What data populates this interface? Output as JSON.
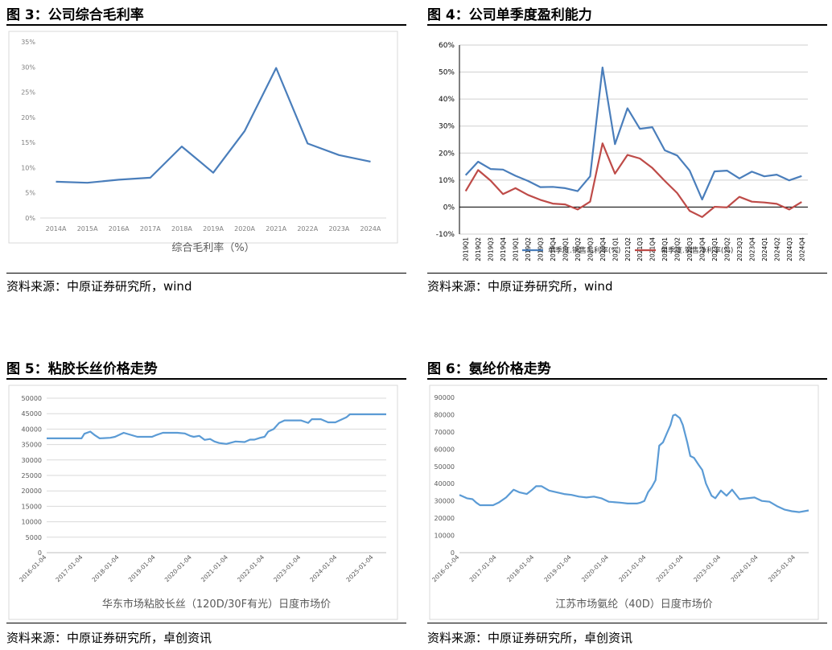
{
  "charts": [
    {
      "heading": "图 3：公司综合毛利率",
      "source": "资料来源：中原证券研究所，wind",
      "chart_data": {
        "type": "line",
        "title": "",
        "xlabel": "综合毛利率（%）",
        "ylabel": "",
        "ylim": [
          0,
          35
        ],
        "yticks": [
          "0%",
          "5%",
          "10%",
          "15%",
          "20%",
          "25%",
          "30%",
          "35%"
        ],
        "categories": [
          "2014A",
          "2015A",
          "2016A",
          "2017A",
          "2018A",
          "2019A",
          "2020A",
          "2021A",
          "2022A",
          "2023A",
          "2024A"
        ],
        "series": [
          {
            "name": "",
            "color": "#4a7ebb",
            "values": [
              7.2,
              7.0,
              7.6,
              8.0,
              14.2,
              9.0,
              17.3,
              29.8,
              14.8,
              12.5,
              11.2
            ]
          }
        ],
        "grid": false
      }
    },
    {
      "heading": "图 4：公司单季度盈利能力",
      "source": "资料来源：中原证券研究所，wind",
      "chart_data": {
        "type": "line",
        "title": "",
        "xlabel": "",
        "ylabel": "",
        "ylim": [
          -10,
          60
        ],
        "yticks": [
          "-10%",
          "0%",
          "10%",
          "20%",
          "30%",
          "40%",
          "50%",
          "60%"
        ],
        "categories": [
          "2019Q1",
          "2019Q2",
          "2019Q3",
          "2019Q4",
          "2019Q1",
          "2019Q2",
          "2019Q3",
          "2019Q4",
          "2020Q1",
          "2020Q2",
          "2020Q3",
          "2020Q4",
          "2021Q1",
          "2021Q2",
          "2021Q3",
          "2021Q4",
          "2022Q1",
          "2022Q2",
          "2022Q3",
          "2022Q4",
          "2023Q1",
          "2023Q2",
          "2023Q3",
          "2023Q4",
          "2024Q1",
          "2024Q2",
          "2024Q3",
          "2024Q4"
        ],
        "series": [
          {
            "name": "单季度.销售毛利率(%)",
            "color": "#4a7ebb",
            "values": [
              11.8,
              16.8,
              14.1,
              13.9,
              11.6,
              9.7,
              7.4,
              7.5,
              7.0,
              5.9,
              11.4,
              51.7,
              23.3,
              36.6,
              29.0,
              29.6,
              21.0,
              19.1,
              13.5,
              2.8,
              13.2,
              13.5,
              10.6,
              13.1,
              11.4,
              12.0,
              9.9,
              11.5
            ]
          },
          {
            "name": "单季度.销售净利率(%)",
            "color": "#be4b48",
            "values": [
              5.9,
              13.7,
              9.8,
              4.8,
              7.0,
              4.5,
              2.7,
              1.3,
              1.0,
              -0.9,
              2.0,
              23.6,
              12.4,
              19.3,
              18.0,
              14.5,
              9.7,
              5.2,
              -1.4,
              -3.7,
              0.1,
              -0.1,
              3.8,
              2.0,
              1.7,
              1.2,
              -0.9,
              1.9
            ]
          }
        ],
        "legend": "bottom",
        "grid": true
      }
    },
    {
      "heading": "图 5：粘胶长丝价格走势",
      "source": "资料来源：中原证券研究所，卓创资讯",
      "chart_data": {
        "type": "line",
        "title": "",
        "xlabel": "华东市场粘胶长丝（120D/30F有光）日度市场价",
        "ylabel": "",
        "ylim": [
          0,
          50000
        ],
        "yticks": [
          "0",
          "5000",
          "10000",
          "15000",
          "20000",
          "25000",
          "30000",
          "35000",
          "40000",
          "45000",
          "50000"
        ],
        "xticks": [
          "2016-01-04",
          "2017-01-04",
          "2018-01-04",
          "2019-01-04",
          "2020-01-04",
          "2021-01-04",
          "2022-01-04",
          "2023-01-04",
          "2024-01-04",
          "2025-01-04"
        ],
        "xrange": [
          2016.0,
          2025.35
        ],
        "series": [
          {
            "name": "",
            "color": "#5b9bd5",
            "x": [
              2016.0,
              2016.96,
              2017.04,
              2017.2,
              2017.33,
              2017.46,
              2017.75,
              2017.88,
              2018.12,
              2018.5,
              2018.9,
              2019.0,
              2019.2,
              2019.6,
              2019.8,
              2019.95,
              2020.05,
              2020.2,
              2020.35,
              2020.5,
              2020.62,
              2020.75,
              2020.95,
              2021.2,
              2021.45,
              2021.6,
              2021.72,
              2021.88,
              2022.0,
              2022.1,
              2022.25,
              2022.4,
              2022.55,
              2022.8,
              2023.0,
              2023.2,
              2023.3,
              2023.55,
              2023.75,
              2023.95,
              2024.1,
              2024.25,
              2024.35,
              2024.45,
              2024.6,
              2024.8,
              2025.0,
              2025.35
            ],
            "y": [
              37000,
              37000,
              38500,
              39200,
              38000,
              37000,
              37200,
              37500,
              38800,
              37500,
              37500,
              38000,
              38800,
              38800,
              38600,
              37800,
              37500,
              37800,
              36500,
              36800,
              36000,
              35500,
              35200,
              36000,
              35800,
              36600,
              36600,
              37200,
              37500,
              39200,
              40000,
              42000,
              42800,
              42800,
              42800,
              42000,
              43200,
              43200,
              42200,
              42200,
              43000,
              43800,
              44800,
              44800,
              44800,
              44800,
              44800,
              44800
            ]
          }
        ],
        "grid": true
      }
    },
    {
      "heading": "图 6：氨纶价格走势",
      "source": "资料来源：中原证券研究所，卓创资讯",
      "chart_data": {
        "type": "line",
        "title": "",
        "xlabel": "江苏市场氨纶（40D）日度市场价",
        "ylabel": "",
        "ylim": [
          0,
          90000
        ],
        "yticks": [
          "0",
          "10000",
          "20000",
          "30000",
          "40000",
          "50000",
          "60000",
          "70000",
          "80000",
          "90000"
        ],
        "xticks": [
          "2016-01-04",
          "2017-01-04",
          "2018-01-04",
          "2019-01-04",
          "2020-01-04",
          "2021-01-04",
          "2022-01-04",
          "2023-01-04",
          "2024-01-04",
          "2025-01-04"
        ],
        "xrange": [
          2016.0,
          2025.35
        ],
        "series": [
          {
            "name": "",
            "color": "#5b9bd5",
            "x": [
              2016.0,
              2016.1,
              2016.2,
              2016.35,
              2016.45,
              2016.55,
              2016.9,
              2017.05,
              2017.25,
              2017.45,
              2017.6,
              2017.8,
              2017.95,
              2018.05,
              2018.2,
              2018.4,
              2018.6,
              2018.8,
              2019.0,
              2019.2,
              2019.4,
              2019.6,
              2019.8,
              2020.0,
              2020.3,
              2020.5,
              2020.75,
              2020.85,
              2020.95,
              2021.05,
              2021.15,
              2021.25,
              2021.35,
              2021.45,
              2021.55,
              2021.65,
              2021.72,
              2021.78,
              2021.9,
              2021.98,
              2022.1,
              2022.18,
              2022.28,
              2022.4,
              2022.5,
              2022.6,
              2022.75,
              2022.85,
              2023.0,
              2023.15,
              2023.3,
              2023.5,
              2023.7,
              2023.9,
              2024.1,
              2024.3,
              2024.5,
              2024.7,
              2024.9,
              2025.1,
              2025.35
            ],
            "y": [
              33500,
              32500,
              31500,
              31000,
              29000,
              27500,
              27500,
              29000,
              32000,
              36500,
              35000,
              34000,
              36500,
              38500,
              38500,
              36000,
              35000,
              34000,
              33500,
              32500,
              32000,
              32500,
              31500,
              29500,
              29000,
              28500,
              28500,
              29000,
              30000,
              35000,
              38000,
              42000,
              62000,
              64000,
              69000,
              74000,
              79500,
              80000,
              78000,
              74000,
              64000,
              56000,
              55000,
              51000,
              48000,
              40000,
              33000,
              31500,
              36000,
              33000,
              36500,
              31000,
              31500,
              32000,
              30000,
              29500,
              27000,
              25000,
              24000,
              23500,
              24500
            ]
          }
        ],
        "grid": false
      }
    }
  ]
}
